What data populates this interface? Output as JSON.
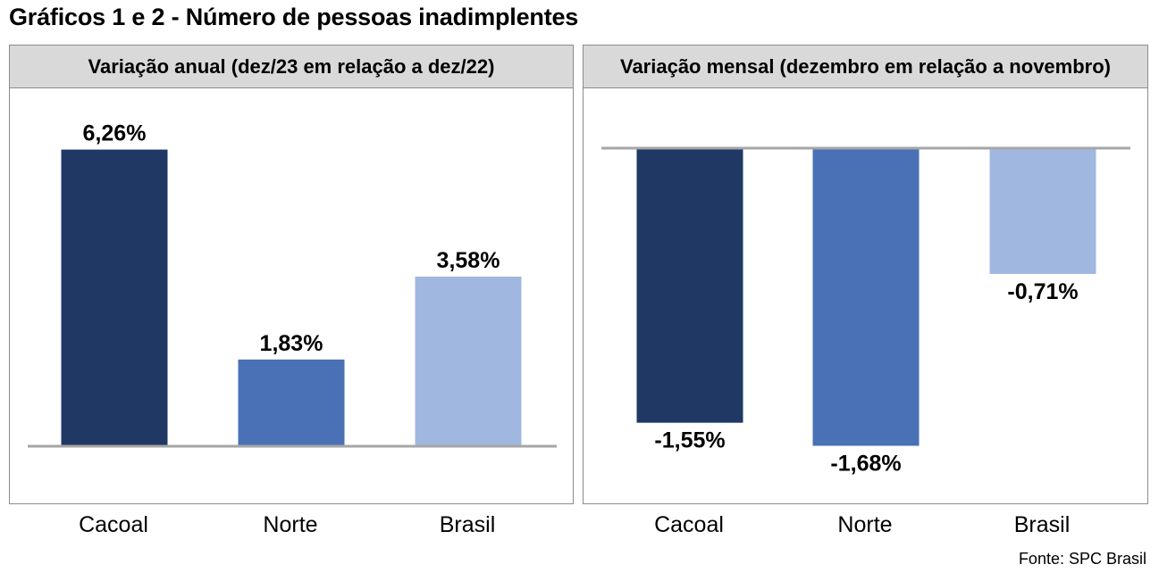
{
  "title": "Gráficos 1 e 2 - Número de pessoas inadimplentes",
  "source": "Fonte: SPC Brasil",
  "colors": {
    "cacoal": "#1f3864",
    "norte": "#4a70b5",
    "brasil": "#a0b8e0",
    "baseline": "#a6a6a6",
    "header_bg": "#d9d9d9",
    "border": "#8c8c8c"
  },
  "chart_data": [
    {
      "type": "bar",
      "title": "Variação anual (dez/23 em relação a dez/22)",
      "categories": [
        "Cacoal",
        "Norte",
        "Brasil"
      ],
      "values": [
        6.26,
        1.83,
        3.58
      ],
      "data_labels": [
        "6,26%",
        "1,83%",
        "3,58%"
      ],
      "unit": "%",
      "grid": false,
      "legend": "none"
    },
    {
      "type": "bar",
      "title": "Variação mensal (dezembro em relação a novembro)",
      "categories": [
        "Cacoal",
        "Norte",
        "Brasil"
      ],
      "values": [
        -1.55,
        -1.68,
        -0.71
      ],
      "data_labels": [
        "-1,55%",
        "-1,68%",
        "-0,71%"
      ],
      "unit": "%",
      "grid": false,
      "legend": "none"
    }
  ]
}
